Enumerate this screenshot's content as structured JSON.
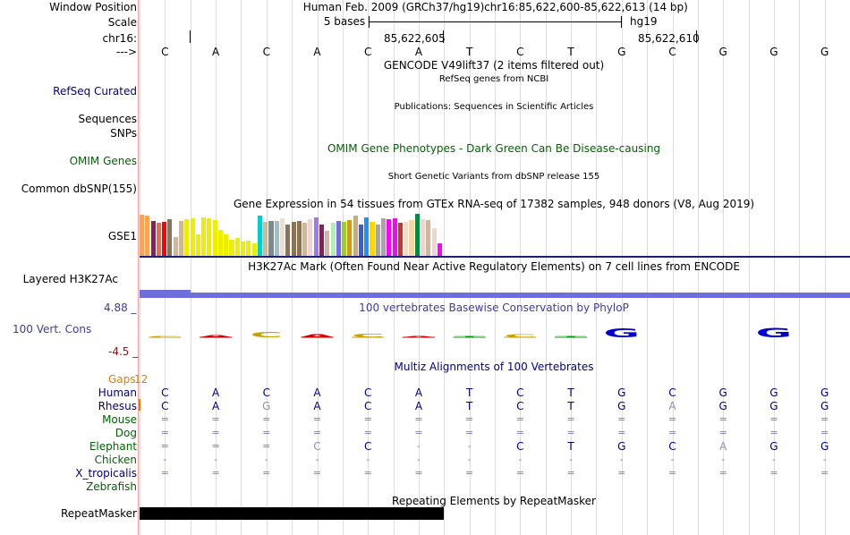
{
  "window_position": {
    "label": "Window Position",
    "assembly_text": "Human Feb. 2009 (GRCh37/hg19)",
    "position_text": "chr16:85,622,600-85,622,613 (14 bp)"
  },
  "scale": {
    "label": "Scale",
    "left_text": "5 bases",
    "right_text": "hg19"
  },
  "chrom": {
    "label": "chr16:",
    "pos1": "85,622,605",
    "pos2": "85,622,610"
  },
  "strand": {
    "label": "--->"
  },
  "bases": [
    "C",
    "A",
    "C",
    "A",
    "C",
    "A",
    "T",
    "C",
    "T",
    "G",
    "C",
    "G",
    "G",
    "G"
  ],
  "gencode": {
    "title": "GENCODE V49lift37 (2 items filtered out)"
  },
  "refseq": {
    "label": "RefSeq Curated",
    "title": "RefSeq genes from NCBI"
  },
  "publications": {
    "label": "Sequences",
    "title": "Publications: Sequences in Scientific Articles"
  },
  "snps": {
    "label": "SNPs"
  },
  "omim": {
    "label": "OMIM Genes",
    "title": "OMIM Gene Phenotypes - Dark Green Can Be Disease-causing",
    "color": "#006400"
  },
  "dbsnp": {
    "label": "Common dbSNP(155)",
    "title": "Short Genetic Variants from dbSNP release 155"
  },
  "gtex": {
    "label": "GSE1",
    "title": "Gene Expression in 54 tissues from GTEx RNA-seq of 17382 samples, 948 donors (V8, Aug 2019)",
    "tissue_values": [
      0.98,
      0.95,
      0.82,
      0.78,
      0.8,
      0.88,
      0.45,
      0.82,
      0.88,
      0.9,
      0.52,
      0.92,
      0.9,
      0.85,
      0.62,
      0.5,
      0.38,
      0.42,
      0.34,
      0.36,
      0.3,
      0.95,
      0.8,
      0.82,
      0.84,
      0.9,
      0.75,
      0.8,
      0.82,
      0.78,
      0.88,
      0.92,
      0.75,
      0.6,
      0.78,
      0.82,
      0.8,
      0.86,
      0.95,
      0.74,
      0.92,
      0.8,
      0.75,
      0.9,
      0.88,
      0.9,
      0.78,
      0.8,
      0.86,
      1.0,
      0.88,
      0.85,
      0.65,
      0.3
    ],
    "tissue_colors": [
      "#f4a460",
      "#ffa54f",
      "#8b1c62",
      "#ee6a50",
      "#ff0000",
      "#8b7355",
      "#cdb79e",
      "#cdb79e",
      "#eeee00",
      "#eeee00",
      "#eeee00",
      "#eeee00",
      "#eeee00",
      "#eeee00",
      "#eeee00",
      "#eeee00",
      "#eeee00",
      "#eeee00",
      "#eeee00",
      "#eeee00",
      "#eeee00",
      "#00cdcd",
      "#cdb79e",
      "#7a8b8b",
      "#9ac0cd",
      "#eedfcc",
      "#8b7355",
      "#8b7355",
      "#8b7355",
      "#cdb79e",
      "#eed5d2",
      "#9f79ee",
      "#8b1c62",
      "#cdb79e",
      "#b4eeb4",
      "#7a67ee",
      "#9acd32",
      "#cd9b1d",
      "#cdaa7d",
      "#3a5fcd",
      "#1e90ff",
      "#ffd700",
      "#a6a6a6",
      "#a6a6a6",
      "#ff00ff",
      "#ff00ff",
      "#cd3333",
      "#ffdab9",
      "#ffd39b",
      "#008b45",
      "#eed5d2",
      "#cdb79e",
      "#eed5d2",
      "#ff00ff"
    ]
  },
  "h3k27ac": {
    "label": "Layered H3K27Ac",
    "title": "H3K27Ac Mark (Often Found Near Active Regulatory Elements) on 7 cell lines from ENCODE"
  },
  "conservation": {
    "label": "100 Vert. Cons",
    "title": "100 vertebrates Basewise Conservation by PhyloP",
    "max_label": "4.88 _",
    "min_label": "-4.5 _",
    "logo_letters": [
      "C",
      "A",
      "C",
      "A",
      "C",
      "A",
      "T",
      "C",
      "T",
      "G",
      "C",
      "G",
      "G",
      "G"
    ],
    "logo_heights": [
      0.1,
      0.25,
      0.55,
      0.3,
      0.35,
      0.05,
      0.1,
      0.3,
      0.1,
      0.9,
      0,
      0,
      1.0,
      0
    ],
    "logo_colors": [
      "#c8a000",
      "#d00000",
      "#c8a000",
      "#d00000",
      "#c8a000",
      "#d00000",
      "#00a000",
      "#c8a000",
      "#00a000",
      "#0000d0",
      "#c8a000",
      "#0000d0",
      "#0000d0",
      "#0000d0"
    ]
  },
  "multiz": {
    "title": "Multiz Alignments of 100 Vertebrates",
    "gaps_label": "Gaps",
    "gaps_value": "12",
    "species": [
      {
        "name": "Human",
        "bases": [
          "C",
          "A",
          "C",
          "A",
          "C",
          "A",
          "T",
          "C",
          "T",
          "G",
          "C",
          "G",
          "G",
          "G"
        ]
      },
      {
        "name": "Rhesus",
        "bases": [
          "C",
          "A",
          "G",
          "A",
          "C",
          "A",
          "T",
          "C",
          "T",
          "G",
          "A",
          "G",
          "G",
          "G"
        ]
      },
      {
        "name": "Mouse",
        "bases": [
          "=",
          "=",
          "=",
          "=",
          "=",
          "=",
          "=",
          "=",
          "=",
          "=",
          "=",
          "=",
          "=",
          "="
        ]
      },
      {
        "name": "Dog",
        "bases": [
          "=",
          "=",
          "=",
          "=",
          "=",
          "=",
          "=",
          "=",
          "=",
          "=",
          "=",
          "=",
          "=",
          "="
        ]
      },
      {
        "name": "Elephant",
        "bases": [
          "=",
          "=",
          "=",
          "C",
          "C",
          "-",
          "-",
          "C",
          "T",
          "G",
          "C",
          "A",
          "G",
          "G"
        ]
      },
      {
        "name": "Chicken",
        "bases": [
          "-",
          "-",
          "-",
          "-",
          "-",
          "-",
          "-",
          "-",
          "-",
          "-",
          "-",
          "-",
          "-",
          "-"
        ]
      },
      {
        "name": "X_tropicalis",
        "bases": [
          "=",
          "=",
          "=",
          "=",
          "=",
          "=",
          "=",
          "=",
          "=",
          "=",
          "=",
          "=",
          "=",
          "="
        ]
      },
      {
        "name": "Zebrafish",
        "bases": [
          "",
          "",
          "",
          "",
          "",
          "",
          "",
          "",
          "",
          "",
          "",
          "",
          "",
          ""
        ]
      }
    ]
  },
  "repeatmasker": {
    "label": "RepeatMasker",
    "title": "Repeating Elements by RepeatMasker"
  },
  "colors": {
    "navy": "#000080",
    "green": "#006400",
    "conservation": "#3c3ca0",
    "gaps": "#e08000",
    "conservation_bar": "#6e6edc",
    "gtex_separator": "#1e1e78"
  }
}
